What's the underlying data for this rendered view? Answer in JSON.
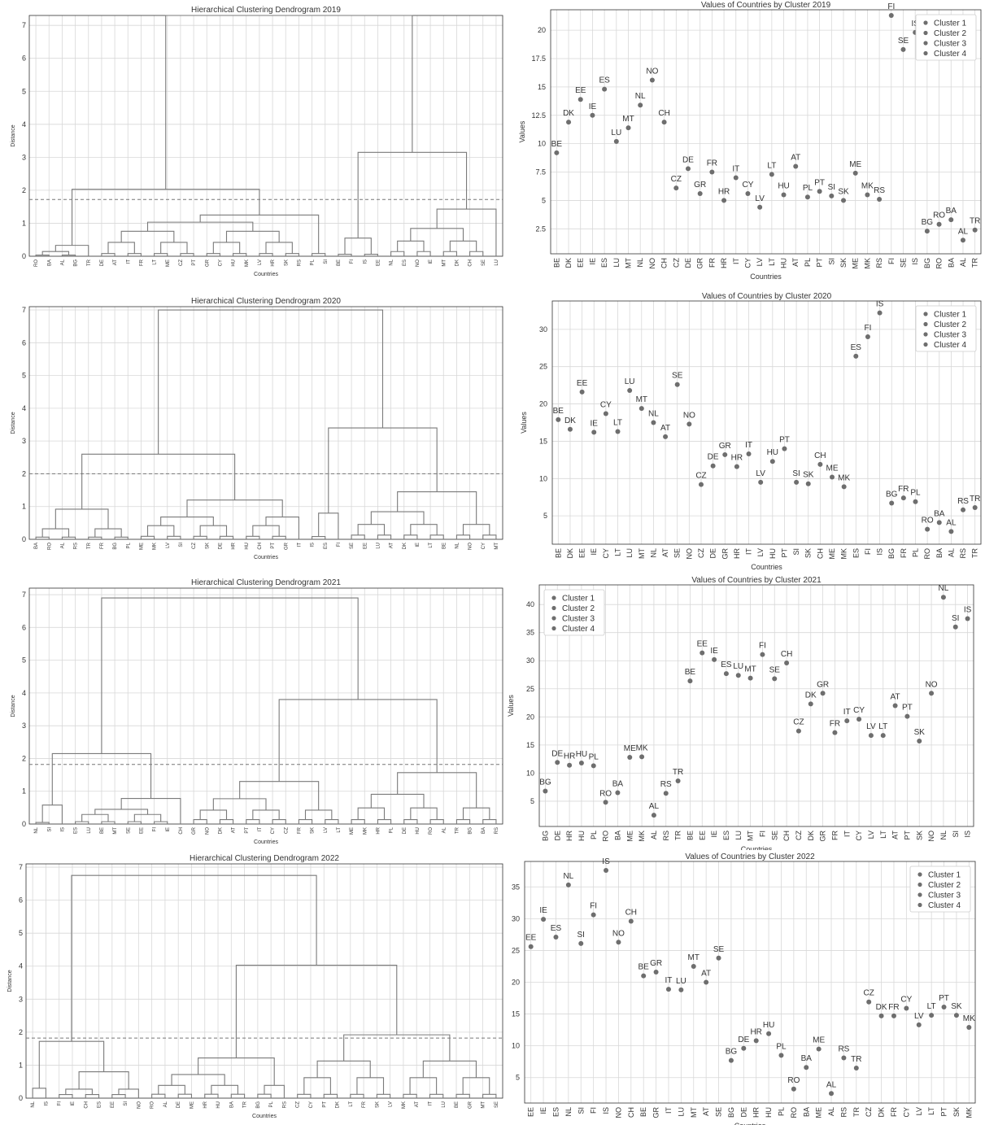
{
  "colors": {
    "grid": "#d8d8d8",
    "line": "#7a7a7a",
    "point": "#6e6e6e",
    "axis": "#333333"
  },
  "dendrograms": [
    {
      "title": "Hierarchical Clustering Dendrogram 2019",
      "xlabel": "Countries",
      "ylabel": "Distance",
      "ylim": [
        0,
        7.3
      ],
      "yticks": [
        0,
        1,
        2,
        3,
        4,
        5,
        6,
        7
      ],
      "threshold": 1.72,
      "leaves": [
        "RO",
        "BA",
        "AL",
        "BG",
        "TR",
        "DE",
        "AT",
        "IT",
        "FR",
        "LT",
        "ME",
        "CZ",
        "PT",
        "GR",
        "CY",
        "HU",
        "MK",
        "LV",
        "HR",
        "SK",
        "RS",
        "PL",
        "SI",
        "BE",
        "FI",
        "IS",
        "EE",
        "NL",
        "ES",
        "NO",
        "IE",
        "MT",
        "DK",
        "CH",
        "SE",
        "LU"
      ],
      "cluster_merges": [
        {
          "leaves": [
            0,
            4
          ],
          "height": 0.33
        },
        {
          "leaves": [
            5,
            22
          ],
          "height": 1.25
        },
        {
          "leaves": [
            23,
            26
          ],
          "height": 0.55
        },
        {
          "leaves": [
            27,
            35
          ],
          "height": 1.43
        }
      ],
      "top_merges": [
        2.03,
        3.15,
        7.3
      ]
    },
    {
      "title": "Hierarchical Clustering Dendrogram 2020",
      "xlabel": "Countries",
      "ylabel": "Distance",
      "ylim": [
        0,
        7.1
      ],
      "yticks": [
        0,
        1,
        2,
        3,
        4,
        5,
        6,
        7
      ],
      "threshold": 2.0,
      "leaves": [
        "BA",
        "RO",
        "AL",
        "RS",
        "TR",
        "FR",
        "BG",
        "PL",
        "ME",
        "MK",
        "LV",
        "SI",
        "CZ",
        "SK",
        "DE",
        "HR",
        "HU",
        "CH",
        "PT",
        "GR",
        "IT",
        "IS",
        "ES",
        "FI",
        "SE",
        "EE",
        "LU",
        "AT",
        "DK",
        "IE",
        "LT",
        "BE",
        "NL",
        "NO",
        "CY",
        "MT"
      ],
      "cluster_merges": [
        {
          "leaves": [
            0,
            7
          ],
          "height": 0.92
        },
        {
          "leaves": [
            8,
            20
          ],
          "height": 1.2
        },
        {
          "leaves": [
            21,
            23
          ],
          "height": 0.8
        },
        {
          "leaves": [
            24,
            35
          ],
          "height": 1.45
        }
      ],
      "top_merges": [
        2.6,
        3.4,
        7.0
      ]
    },
    {
      "title": "Hierarchical Clustering Dendrogram 2021",
      "xlabel": "Countries",
      "ylabel": "Distance",
      "ylim": [
        0,
        7.2
      ],
      "yticks": [
        0,
        1,
        2,
        3,
        4,
        5,
        6,
        7
      ],
      "threshold": 1.82,
      "leaves": [
        "NL",
        "SI",
        "IS",
        "ES",
        "LU",
        "BE",
        "MT",
        "SE",
        "EE",
        "FI",
        "IE",
        "CH",
        "GR",
        "NO",
        "DK",
        "AT",
        "PT",
        "IT",
        "CY",
        "CZ",
        "FR",
        "SK",
        "LV",
        "LT",
        "ME",
        "MK",
        "HR",
        "PL",
        "DE",
        "HU",
        "RO",
        "AL",
        "TR",
        "BG",
        "BA",
        "RS"
      ],
      "cluster_merges": [
        {
          "leaves": [
            0,
            2
          ],
          "height": 0.58
        },
        {
          "leaves": [
            3,
            11
          ],
          "height": 0.78
        },
        {
          "leaves": [
            12,
            23
          ],
          "height": 1.3
        },
        {
          "leaves": [
            24,
            35
          ],
          "height": 1.57
        }
      ],
      "top_merges": [
        2.15,
        3.8,
        6.9
      ]
    },
    {
      "title": "Hierarchical Clustering Dendrogram 2022",
      "xlabel": "Countries",
      "ylabel": "Distance",
      "ylim": [
        0,
        7.1
      ],
      "yticks": [
        0,
        1,
        2,
        3,
        4,
        5,
        6,
        7
      ],
      "threshold": 1.82,
      "leaves": [
        "NL",
        "IS",
        "FI",
        "IE",
        "CH",
        "ES",
        "EE",
        "SI",
        "NO",
        "RO",
        "AL",
        "DE",
        "ME",
        "HR",
        "HU",
        "BA",
        "TR",
        "BG",
        "PL",
        "RS",
        "CZ",
        "CY",
        "PT",
        "DK",
        "LT",
        "FR",
        "SK",
        "LV",
        "MK",
        "AT",
        "IT",
        "LU",
        "BE",
        "GR",
        "MT",
        "SE"
      ],
      "cluster_merges": [
        {
          "leaves": [
            0,
            1
          ],
          "height": 0.3
        },
        {
          "leaves": [
            2,
            8
          ],
          "height": 0.8
        },
        {
          "leaves": [
            9,
            19
          ],
          "height": 1.22
        },
        {
          "leaves": [
            20,
            35
          ],
          "height": 1.92
        }
      ],
      "top_merges": [
        1.72,
        4.03,
        6.75
      ]
    }
  ],
  "chart_data": [
    {
      "type": "dendrogram",
      "title": "Hierarchical Clustering Dendrogram 2019",
      "xlabel": "Countries",
      "ylabel": "Distance",
      "leaves": [
        "RO",
        "BA",
        "AL",
        "BG",
        "TR",
        "DE",
        "AT",
        "IT",
        "FR",
        "LT",
        "ME",
        "CZ",
        "PT",
        "GR",
        "CY",
        "HU",
        "MK",
        "LV",
        "HR",
        "SK",
        "RS",
        "PL",
        "SI",
        "BE",
        "FI",
        "IS",
        "EE",
        "NL",
        "ES",
        "NO",
        "IE",
        "MT",
        "DK",
        "CH",
        "SE",
        "LU"
      ],
      "cut_height": 1.72,
      "ylim": [
        0,
        7.3
      ]
    },
    {
      "type": "scatter",
      "title": "Values of Countries by Cluster 2019",
      "xlabel": "Countries",
      "ylabel": "Values",
      "categories": [
        "BE",
        "DK",
        "EE",
        "IE",
        "ES",
        "LU",
        "MT",
        "NL",
        "NO",
        "CH",
        "CZ",
        "DE",
        "GR",
        "FR",
        "HR",
        "IT",
        "CY",
        "LV",
        "LT",
        "HU",
        "AT",
        "PL",
        "PT",
        "SI",
        "SK",
        "ME",
        "MK",
        "RS",
        "FI",
        "SE",
        "IS",
        "BG",
        "RO",
        "BA",
        "AL",
        "TR"
      ],
      "values": [
        9.2,
        11.9,
        13.9,
        12.5,
        14.8,
        10.2,
        11.4,
        13.4,
        15.6,
        11.9,
        6.1,
        7.8,
        5.6,
        7.5,
        5.0,
        7.0,
        5.6,
        4.4,
        7.3,
        5.5,
        8.0,
        5.3,
        5.8,
        5.4,
        5.0,
        7.4,
        5.5,
        5.1,
        21.3,
        18.3,
        19.8,
        2.3,
        2.9,
        3.3,
        1.5,
        2.4
      ],
      "series": [
        {
          "name": "Cluster 1",
          "range": [
            0,
            9
          ]
        },
        {
          "name": "Cluster 2",
          "range": [
            10,
            27
          ]
        },
        {
          "name": "Cluster 3",
          "range": [
            28,
            30
          ]
        },
        {
          "name": "Cluster 4",
          "range": [
            31,
            35
          ]
        }
      ],
      "ylim": [
        0.3,
        21.8
      ],
      "yticks": [
        2.5,
        5.0,
        7.5,
        10.0,
        12.5,
        15.0,
        17.5,
        20.0
      ],
      "legend": "top-right",
      "grid": true
    },
    {
      "type": "dendrogram",
      "title": "Hierarchical Clustering Dendrogram 2020",
      "xlabel": "Countries",
      "ylabel": "Distance",
      "leaves": [
        "BA",
        "RO",
        "AL",
        "RS",
        "TR",
        "FR",
        "BG",
        "PL",
        "ME",
        "MK",
        "LV",
        "SI",
        "CZ",
        "SK",
        "DE",
        "HR",
        "HU",
        "CH",
        "PT",
        "GR",
        "IT",
        "IS",
        "ES",
        "FI",
        "SE",
        "EE",
        "LU",
        "AT",
        "DK",
        "IE",
        "LT",
        "BE",
        "NL",
        "NO",
        "CY",
        "MT"
      ],
      "cut_height": 2.0,
      "ylim": [
        0,
        7.1
      ]
    },
    {
      "type": "scatter",
      "title": "Values of Countries by Cluster 2020",
      "xlabel": "Countries",
      "ylabel": "Values",
      "categories": [
        "BE",
        "DK",
        "EE",
        "IE",
        "CY",
        "LT",
        "LU",
        "MT",
        "NL",
        "AT",
        "SE",
        "NO",
        "CZ",
        "DE",
        "GR",
        "HR",
        "IT",
        "LV",
        "HU",
        "PT",
        "SI",
        "SK",
        "CH",
        "ME",
        "MK",
        "ES",
        "FI",
        "IS",
        "BG",
        "FR",
        "PL",
        "RO",
        "BA",
        "AL",
        "RS",
        "TR"
      ],
      "values": [
        17.9,
        16.6,
        21.6,
        16.2,
        18.7,
        16.3,
        21.8,
        19.4,
        17.5,
        15.6,
        22.6,
        17.3,
        9.2,
        11.7,
        13.2,
        11.6,
        13.3,
        9.5,
        12.3,
        14.0,
        9.5,
        9.3,
        11.9,
        10.2,
        8.9,
        26.4,
        29.0,
        32.2,
        6.7,
        7.4,
        6.9,
        3.2,
        4.1,
        2.9,
        5.8,
        6.1
      ],
      "series": [
        {
          "name": "Cluster 1",
          "range": [
            0,
            11
          ]
        },
        {
          "name": "Cluster 2",
          "range": [
            12,
            24
          ]
        },
        {
          "name": "Cluster 3",
          "range": [
            25,
            27
          ]
        },
        {
          "name": "Cluster 4",
          "range": [
            28,
            35
          ]
        }
      ],
      "ylim": [
        1.2,
        33.8
      ],
      "yticks": [
        5,
        10,
        15,
        20,
        25,
        30
      ],
      "legend": "top-right",
      "grid": true
    },
    {
      "type": "dendrogram",
      "title": "Hierarchical Clustering Dendrogram 2021",
      "xlabel": "Countries",
      "ylabel": "Distance",
      "leaves": [
        "NL",
        "SI",
        "IS",
        "ES",
        "LU",
        "BE",
        "MT",
        "SE",
        "EE",
        "FI",
        "IE",
        "CH",
        "GR",
        "NO",
        "DK",
        "AT",
        "PT",
        "IT",
        "CY",
        "CZ",
        "FR",
        "SK",
        "LV",
        "LT",
        "ME",
        "MK",
        "HR",
        "PL",
        "DE",
        "HU",
        "RO",
        "AL",
        "TR",
        "BG",
        "BA",
        "RS"
      ],
      "cut_height": 1.82,
      "ylim": [
        0,
        7.2
      ]
    },
    {
      "type": "scatter",
      "title": "Values of Countries by Cluster 2021",
      "xlabel": "Countries",
      "ylabel": "Values",
      "categories": [
        "BG",
        "DE",
        "HR",
        "HU",
        "PL",
        "RO",
        "BA",
        "ME",
        "MK",
        "AL",
        "RS",
        "TR",
        "BE",
        "EE",
        "IE",
        "ES",
        "LU",
        "MT",
        "FI",
        "SE",
        "CH",
        "CZ",
        "DK",
        "GR",
        "FR",
        "IT",
        "CY",
        "LV",
        "LT",
        "AT",
        "PT",
        "SK",
        "NO",
        "NL",
        "SI",
        "IS"
      ],
      "values": [
        6.8,
        11.9,
        11.4,
        11.8,
        11.3,
        4.8,
        6.5,
        12.8,
        12.9,
        2.5,
        6.4,
        8.6,
        26.4,
        31.4,
        30.2,
        27.7,
        27.4,
        26.9,
        31.1,
        26.8,
        29.6,
        17.5,
        22.3,
        24.2,
        17.2,
        19.3,
        19.6,
        16.7,
        16.7,
        22.0,
        20.1,
        15.7,
        24.2,
        41.3,
        36.0,
        37.5
      ],
      "series": [
        {
          "name": "Cluster 1",
          "range": [
            0,
            11
          ]
        },
        {
          "name": "Cluster 2",
          "range": [
            12,
            20
          ]
        },
        {
          "name": "Cluster 3",
          "range": [
            21,
            32
          ]
        },
        {
          "name": "Cluster 4",
          "range": [
            33,
            35
          ]
        }
      ],
      "ylim": [
        0.5,
        43.5
      ],
      "yticks": [
        5,
        10,
        15,
        20,
        25,
        30,
        35,
        40
      ],
      "legend": "top-left",
      "grid": true
    },
    {
      "type": "dendrogram",
      "title": "Hierarchical Clustering Dendrogram 2022",
      "xlabel": "Countries",
      "ylabel": "Distance",
      "leaves": [
        "NL",
        "IS",
        "FI",
        "IE",
        "CH",
        "ES",
        "EE",
        "SI",
        "NO",
        "RO",
        "AL",
        "DE",
        "ME",
        "HR",
        "HU",
        "BA",
        "TR",
        "BG",
        "PL",
        "RS",
        "CZ",
        "CY",
        "PT",
        "DK",
        "LT",
        "FR",
        "SK",
        "LV",
        "MK",
        "AT",
        "IT",
        "LU",
        "BE",
        "GR",
        "MT",
        "SE"
      ],
      "cut_height": 1.82,
      "ylim": [
        0,
        7.1
      ]
    },
    {
      "type": "scatter",
      "title": "Values of Countries by Cluster 2022",
      "xlabel": "Countries",
      "ylabel": "Values",
      "categories": [
        "EE",
        "IE",
        "ES",
        "NL",
        "SI",
        "FI",
        "IS",
        "NO",
        "CH",
        "BE",
        "GR",
        "IT",
        "LU",
        "MT",
        "AT",
        "SE",
        "BG",
        "DE",
        "HR",
        "HU",
        "PL",
        "RO",
        "BA",
        "ME",
        "AL",
        "RS",
        "TR",
        "CZ",
        "DK",
        "FR",
        "CY",
        "LV",
        "LT",
        "PT",
        "SK",
        "MK"
      ],
      "values": [
        25.6,
        29.9,
        27.1,
        35.3,
        26.1,
        30.6,
        37.6,
        26.3,
        29.6,
        21.0,
        21.6,
        18.9,
        18.8,
        22.5,
        20.0,
        23.8,
        7.7,
        9.6,
        10.8,
        11.9,
        8.5,
        3.2,
        6.6,
        9.5,
        2.5,
        8.1,
        6.5,
        16.9,
        14.7,
        14.7,
        15.9,
        13.3,
        14.8,
        16.1,
        14.8,
        12.9
      ],
      "series": [
        {
          "name": "Cluster 1",
          "range": [
            0,
            8
          ]
        },
        {
          "name": "Cluster 2",
          "range": [
            9,
            15
          ]
        },
        {
          "name": "Cluster 3",
          "range": [
            16,
            26
          ]
        },
        {
          "name": "Cluster 4",
          "range": [
            27,
            35
          ]
        }
      ],
      "ylim": [
        1.0,
        39.0
      ],
      "yticks": [
        5,
        10,
        15,
        20,
        25,
        30,
        35
      ],
      "legend": "top-right",
      "grid": true
    }
  ]
}
